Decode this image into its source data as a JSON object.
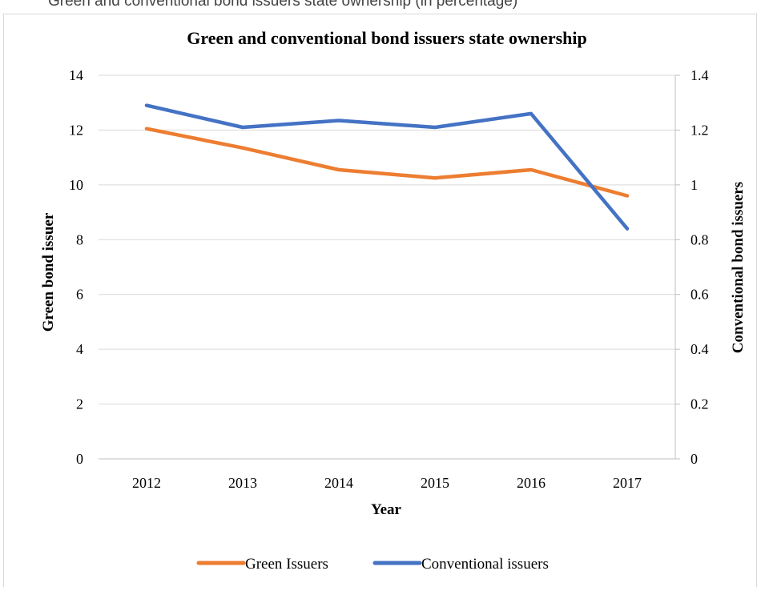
{
  "page": {
    "top_caption": "Green and conventional bond issuers state ownership (in percentage)"
  },
  "chart_data": {
    "type": "line",
    "title": "Green and conventional bond issuers state ownership",
    "xlabel": "Year",
    "ylabel_left": "Green bond issuer",
    "ylabel_right": "Conventional bond issuers",
    "categories": [
      "2012",
      "2013",
      "2014",
      "2015",
      "2016",
      "2017"
    ],
    "y_left": {
      "min": 0,
      "max": 14,
      "step": 2,
      "ticks": [
        "0",
        "2",
        "4",
        "6",
        "8",
        "10",
        "12",
        "14"
      ]
    },
    "y_right": {
      "min": 0,
      "max": 1.4,
      "step": 0.2,
      "ticks": [
        "0",
        "0.2",
        "0.4",
        "0.6",
        "0.8",
        "1",
        "1.2",
        "1.4"
      ]
    },
    "grid": true,
    "legend_position": "bottom",
    "series": [
      {
        "name": "Green Issuers",
        "axis": "left",
        "color": "#ed7d31",
        "values": [
          12.05,
          11.35,
          10.55,
          10.25,
          10.55,
          9.6
        ]
      },
      {
        "name": "Conventional issuers",
        "axis": "right",
        "color": "#4472c4",
        "values": [
          1.29,
          1.21,
          1.235,
          1.21,
          1.26,
          0.84
        ]
      }
    ]
  }
}
